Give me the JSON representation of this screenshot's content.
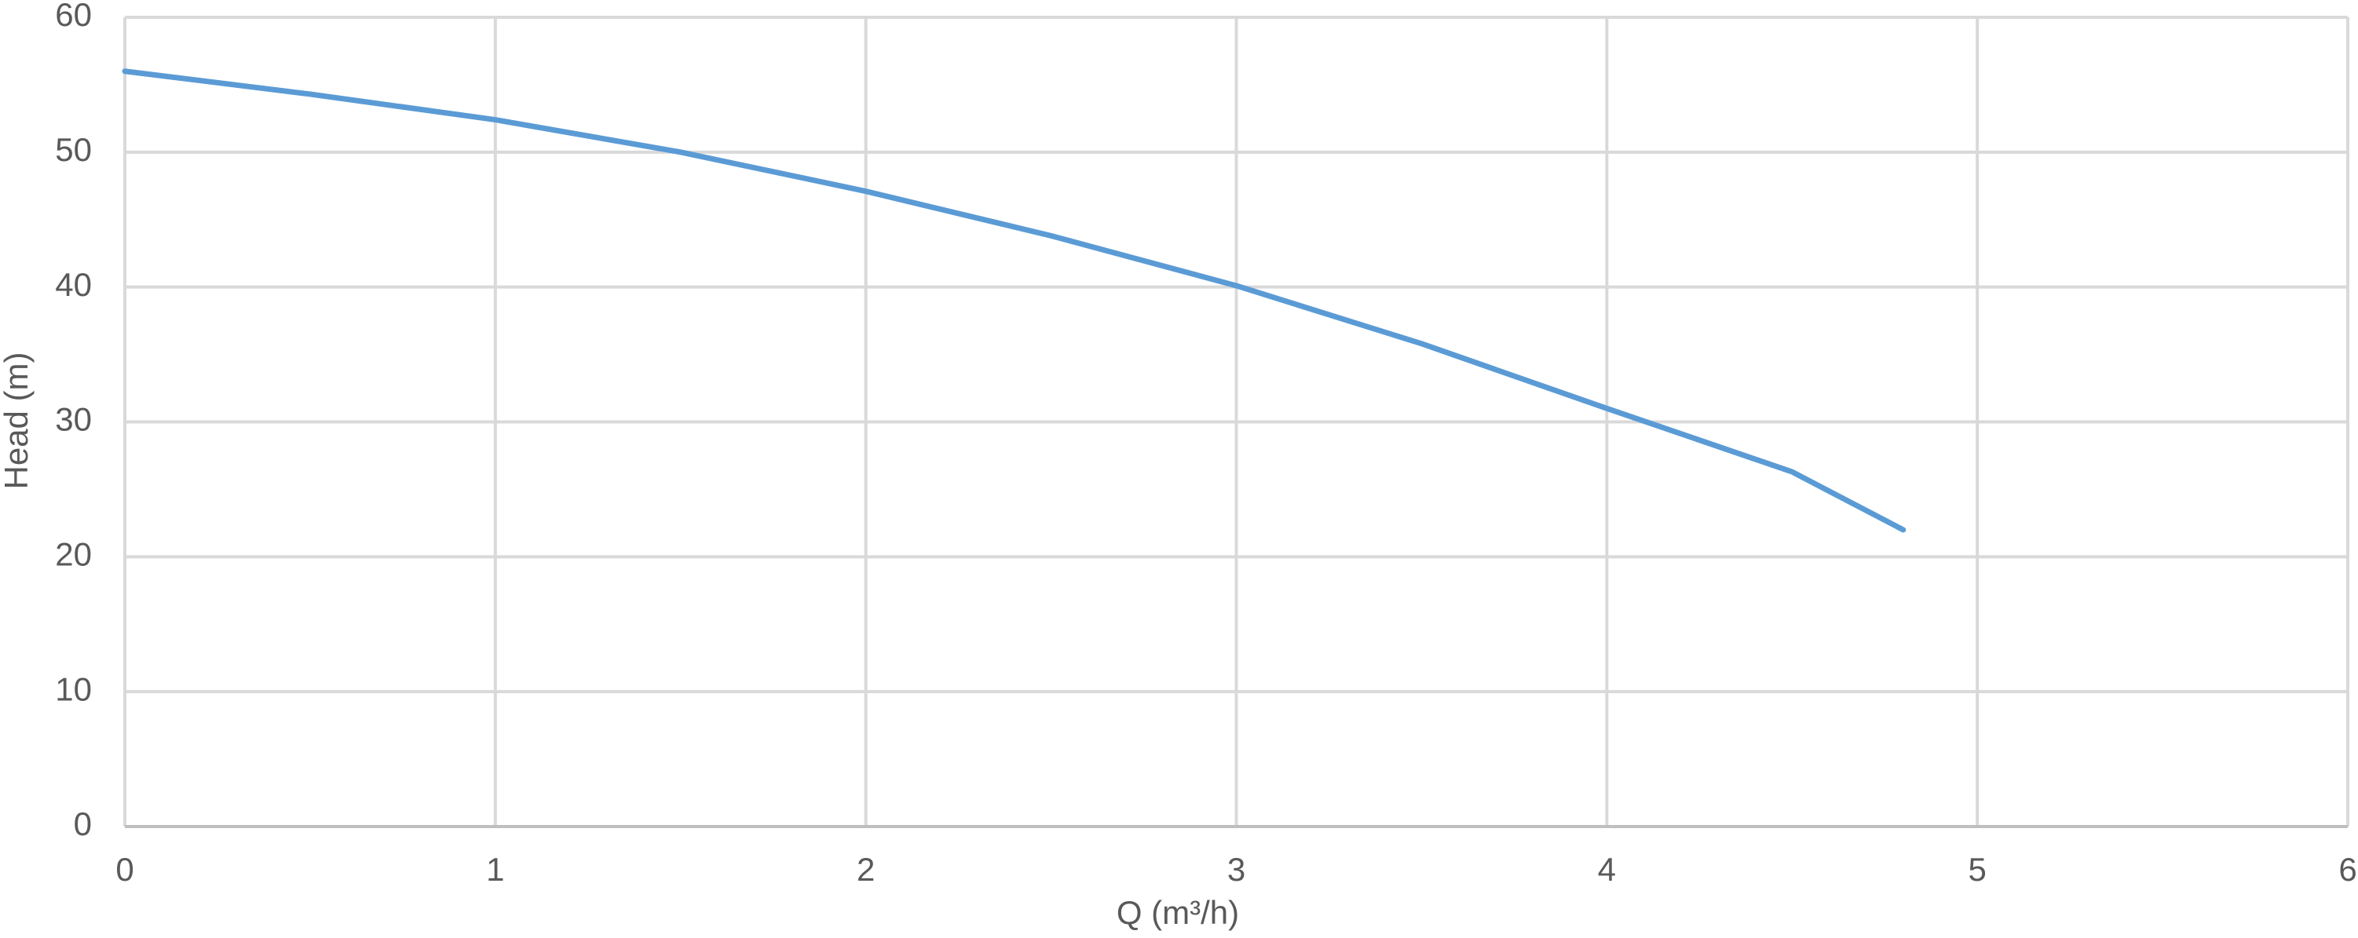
{
  "chart_data": {
    "type": "line",
    "x_label": "Q (m³/h)",
    "y_label": "Head (m)",
    "x": [
      0,
      0.5,
      1,
      1.5,
      2,
      2.5,
      3,
      3.5,
      4,
      4.5,
      4.8
    ],
    "series": [
      {
        "color": "#5b9bd5",
        "values": [
          56,
          54.3,
          52.4,
          50,
          47.1,
          43.8,
          40.1,
          35.8,
          31,
          26.3,
          22
        ]
      }
    ],
    "xlim": [
      0,
      6
    ],
    "xticks": [
      0,
      1,
      2,
      3,
      4,
      5,
      6
    ],
    "ylim": [
      0,
      60
    ],
    "yticks": [
      0,
      10,
      20,
      30,
      40,
      50,
      60
    ],
    "grid": true
  }
}
